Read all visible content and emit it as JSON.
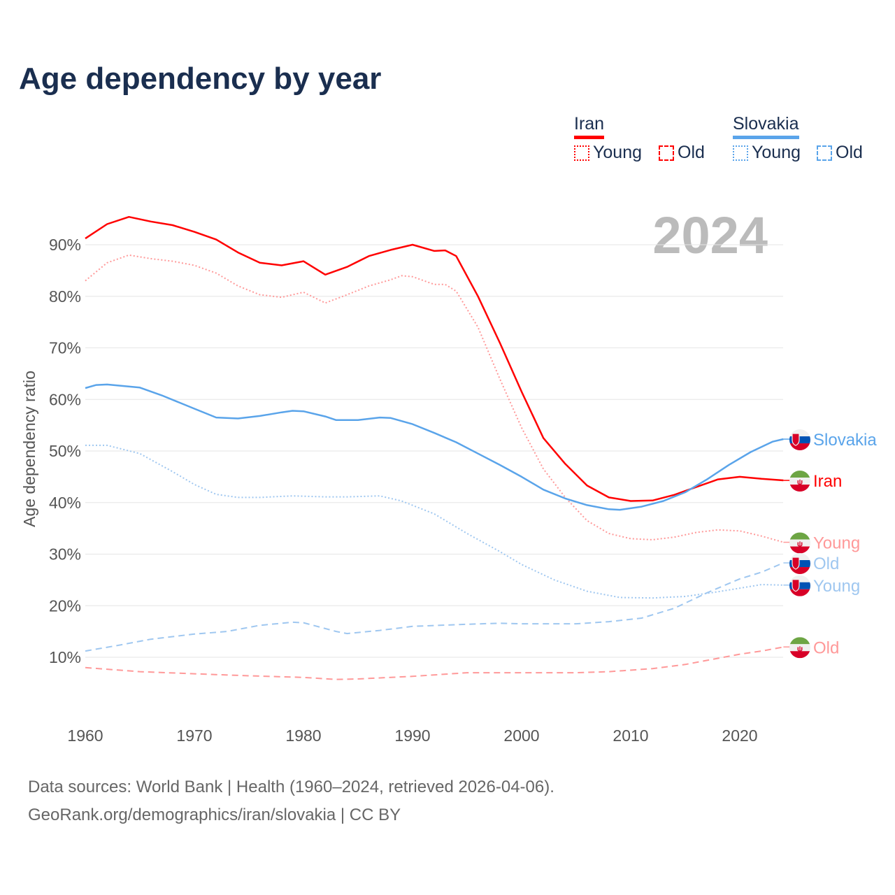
{
  "title": "Age dependency by year",
  "legend": {
    "countries": [
      {
        "name": "Iran",
        "color": "#ff0000",
        "young_label": "Young",
        "old_label": "Old"
      },
      {
        "name": "Slovakia",
        "color": "#5aa4ea",
        "young_label": "Young",
        "old_label": "Old"
      }
    ]
  },
  "footer": {
    "line1": "Data sources: World Bank | Health (1960–2024, retrieved 2026-04-06).",
    "line2": "GeoRank.org/demographics/iran/slovakia | CC BY"
  },
  "chart_data": {
    "type": "line",
    "title": "Age dependency by year",
    "year_label": "2024",
    "xlabel": "",
    "ylabel": "Age dependency ratio",
    "xlim": [
      1960,
      2024
    ],
    "ylim": [
      0,
      95
    ],
    "x_ticks": [
      "1960",
      "1970",
      "1980",
      "1990",
      "2000",
      "2010",
      "2020"
    ],
    "y_ticks": [
      "10%",
      "20%",
      "30%",
      "40%",
      "50%",
      "60%",
      "70%",
      "80%",
      "90%"
    ],
    "grid": true,
    "series": [
      {
        "name": "Iran",
        "end_label": "Iran",
        "country": "iran",
        "style": "solid",
        "color": "#ff0000",
        "points": [
          [
            1960,
            91.2
          ],
          [
            1962,
            94
          ],
          [
            1964,
            95.4
          ],
          [
            1966,
            94.5
          ],
          [
            1968,
            93.8
          ],
          [
            1970,
            92.5
          ],
          [
            1972,
            91
          ],
          [
            1974,
            88.5
          ],
          [
            1976,
            86.5
          ],
          [
            1978,
            86
          ],
          [
            1980,
            86.8
          ],
          [
            1982,
            84.2
          ],
          [
            1984,
            85.7
          ],
          [
            1986,
            87.8
          ],
          [
            1988,
            89
          ],
          [
            1990,
            90
          ],
          [
            1992,
            88.8
          ],
          [
            1993,
            88.9
          ],
          [
            1994,
            87.8
          ],
          [
            1996,
            80
          ],
          [
            1998,
            71
          ],
          [
            2000,
            61.5
          ],
          [
            2002,
            52.5
          ],
          [
            2004,
            47.5
          ],
          [
            2006,
            43.3
          ],
          [
            2008,
            41
          ],
          [
            2010,
            40.3
          ],
          [
            2012,
            40.4
          ],
          [
            2014,
            41.5
          ],
          [
            2016,
            43
          ],
          [
            2018,
            44.5
          ],
          [
            2020,
            45
          ],
          [
            2022,
            44.6
          ],
          [
            2024,
            44.3
          ]
        ]
      },
      {
        "name": "Iran Young",
        "end_label": "Young",
        "country": "iran",
        "style": "dotted",
        "color": "#ff9999",
        "points": [
          [
            1960,
            83
          ],
          [
            1962,
            86.5
          ],
          [
            1964,
            88
          ],
          [
            1966,
            87.3
          ],
          [
            1968,
            86.8
          ],
          [
            1970,
            86
          ],
          [
            1972,
            84.5
          ],
          [
            1974,
            82
          ],
          [
            1976,
            80.3
          ],
          [
            1978,
            79.8
          ],
          [
            1980,
            80.8
          ],
          [
            1982,
            78.7
          ],
          [
            1984,
            80.3
          ],
          [
            1986,
            82
          ],
          [
            1988,
            83.2
          ],
          [
            1989,
            84
          ],
          [
            1990,
            83.8
          ],
          [
            1992,
            82.3
          ],
          [
            1993,
            82.3
          ],
          [
            1994,
            81
          ],
          [
            1996,
            74
          ],
          [
            1998,
            64
          ],
          [
            2000,
            54.5
          ],
          [
            2002,
            46.5
          ],
          [
            2004,
            41
          ],
          [
            2006,
            36.5
          ],
          [
            2008,
            34
          ],
          [
            2010,
            33
          ],
          [
            2012,
            32.8
          ],
          [
            2014,
            33.3
          ],
          [
            2016,
            34.2
          ],
          [
            2018,
            34.7
          ],
          [
            2020,
            34.5
          ],
          [
            2022,
            33.5
          ],
          [
            2024,
            32.3
          ]
        ]
      },
      {
        "name": "Iran Old",
        "end_label": "Old",
        "country": "iran",
        "style": "dashed",
        "color": "#ff9999",
        "points": [
          [
            1960,
            8
          ],
          [
            1965,
            7.2
          ],
          [
            1970,
            6.8
          ],
          [
            1975,
            6.4
          ],
          [
            1980,
            6.1
          ],
          [
            1983,
            5.7
          ],
          [
            1985,
            5.8
          ],
          [
            1990,
            6.3
          ],
          [
            1995,
            7
          ],
          [
            2000,
            7
          ],
          [
            2005,
            7
          ],
          [
            2008,
            7.2
          ],
          [
            2012,
            7.8
          ],
          [
            2015,
            8.6
          ],
          [
            2018,
            9.8
          ],
          [
            2020,
            10.6
          ],
          [
            2022,
            11.2
          ],
          [
            2024,
            12
          ]
        ]
      },
      {
        "name": "Slovakia",
        "end_label": "Slovakia",
        "country": "slovakia",
        "style": "solid",
        "color": "#5aa4ea",
        "points": [
          [
            1960,
            62.2
          ],
          [
            1961,
            62.8
          ],
          [
            1962,
            62.9
          ],
          [
            1965,
            62.3
          ],
          [
            1967,
            60.8
          ],
          [
            1970,
            58.2
          ],
          [
            1972,
            56.5
          ],
          [
            1974,
            56.3
          ],
          [
            1976,
            56.8
          ],
          [
            1978,
            57.5
          ],
          [
            1979,
            57.8
          ],
          [
            1980,
            57.7
          ],
          [
            1982,
            56.7
          ],
          [
            1983,
            56
          ],
          [
            1985,
            56
          ],
          [
            1987,
            56.5
          ],
          [
            1988,
            56.4
          ],
          [
            1990,
            55.2
          ],
          [
            1992,
            53.5
          ],
          [
            1994,
            51.7
          ],
          [
            1996,
            49.5
          ],
          [
            1998,
            47.3
          ],
          [
            2000,
            45
          ],
          [
            2002,
            42.5
          ],
          [
            2004,
            40.8
          ],
          [
            2006,
            39.5
          ],
          [
            2008,
            38.7
          ],
          [
            2009,
            38.6
          ],
          [
            2011,
            39.2
          ],
          [
            2013,
            40.3
          ],
          [
            2015,
            42
          ],
          [
            2017,
            44.5
          ],
          [
            2019,
            47.3
          ],
          [
            2021,
            49.8
          ],
          [
            2023,
            51.8
          ],
          [
            2024,
            52.3
          ]
        ]
      },
      {
        "name": "Slovakia Young",
        "end_label": "Young",
        "country": "slovakia",
        "style": "dotted",
        "color": "#9fc7f0",
        "points": [
          [
            1960,
            51.1
          ],
          [
            1962,
            51.1
          ],
          [
            1965,
            49.5
          ],
          [
            1968,
            46
          ],
          [
            1970,
            43.5
          ],
          [
            1972,
            41.6
          ],
          [
            1974,
            41
          ],
          [
            1976,
            41
          ],
          [
            1979,
            41.3
          ],
          [
            1982,
            41.1
          ],
          [
            1984,
            41.1
          ],
          [
            1987,
            41.3
          ],
          [
            1989,
            40.3
          ],
          [
            1992,
            37.8
          ],
          [
            1995,
            34
          ],
          [
            1998,
            30.5
          ],
          [
            2000,
            28
          ],
          [
            2003,
            25
          ],
          [
            2006,
            22.8
          ],
          [
            2009,
            21.6
          ],
          [
            2012,
            21.5
          ],
          [
            2015,
            21.8
          ],
          [
            2018,
            22.7
          ],
          [
            2020,
            23.4
          ],
          [
            2022,
            24.1
          ],
          [
            2024,
            24
          ]
        ]
      },
      {
        "name": "Slovakia Old",
        "end_label": "Old",
        "country": "slovakia",
        "style": "dashed",
        "color": "#9fc7f0",
        "points": [
          [
            1960,
            11.2
          ],
          [
            1963,
            12.3
          ],
          [
            1966,
            13.5
          ],
          [
            1970,
            14.5
          ],
          [
            1973,
            15
          ],
          [
            1976,
            16.2
          ],
          [
            1979,
            16.8
          ],
          [
            1980,
            16.7
          ],
          [
            1983,
            15
          ],
          [
            1984,
            14.6
          ],
          [
            1987,
            15.2
          ],
          [
            1990,
            16
          ],
          [
            1995,
            16.4
          ],
          [
            1998,
            16.6
          ],
          [
            2000,
            16.5
          ],
          [
            2005,
            16.5
          ],
          [
            2008,
            16.9
          ],
          [
            2011,
            17.6
          ],
          [
            2014,
            19.5
          ],
          [
            2017,
            22.5
          ],
          [
            2020,
            25.2
          ],
          [
            2022,
            26.5
          ],
          [
            2024,
            28.3
          ]
        ]
      }
    ]
  }
}
